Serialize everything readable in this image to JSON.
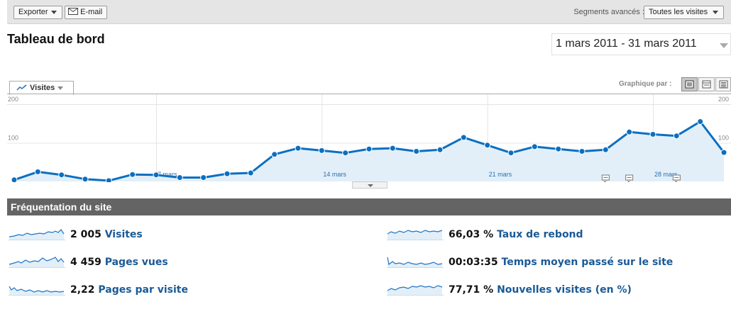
{
  "toolbar": {
    "export_label": "Exporter",
    "email_label": "E-mail",
    "segments_label": "Segments avancés :",
    "segments_value": "Toutes les visites"
  },
  "header": {
    "title": "Tableau de bord",
    "date_range": "1 mars 2011 - 31 mars 2011"
  },
  "chart_controls": {
    "metric_label": "Visites",
    "graph_by_label": "Graphique par :",
    "graph_by_options": [
      "day",
      "week",
      "month"
    ],
    "graph_by_selected": "day"
  },
  "chart_data": {
    "type": "area",
    "series": [
      {
        "name": "Visites",
        "values": [
          4,
          25,
          17,
          6,
          2,
          18,
          17,
          10,
          10,
          20,
          22,
          70,
          86,
          80,
          74,
          84,
          86,
          78,
          82,
          114,
          94,
          74,
          90,
          84,
          78,
          82,
          128,
          122,
          118,
          155,
          75
        ]
      }
    ],
    "x_start": "1 mars 2011",
    "x_tick_labels": [
      "7 mars",
      "14 mars",
      "21 mars",
      "28 mars"
    ],
    "y_tick_labels": [
      "100",
      "200"
    ],
    "ylim": [
      0,
      200
    ],
    "grid": true,
    "annotation_days": [
      26,
      27,
      29
    ],
    "color": "#0b6fc0",
    "fill_color": "#e2eff9"
  },
  "section": {
    "title": "Fréquentation du site"
  },
  "stats": [
    {
      "value": "2 005",
      "label": "Visites"
    },
    {
      "value": "4 459",
      "label": "Pages vues"
    },
    {
      "value": "2,22",
      "label": "Pages par visite"
    },
    {
      "value": "66,03 %",
      "label": "Taux de rebond"
    },
    {
      "value": "00:03:35",
      "label": "Temps moyen passé sur le site"
    },
    {
      "value": "77,71 %",
      "label": "Nouvelles visites (en %)"
    }
  ]
}
